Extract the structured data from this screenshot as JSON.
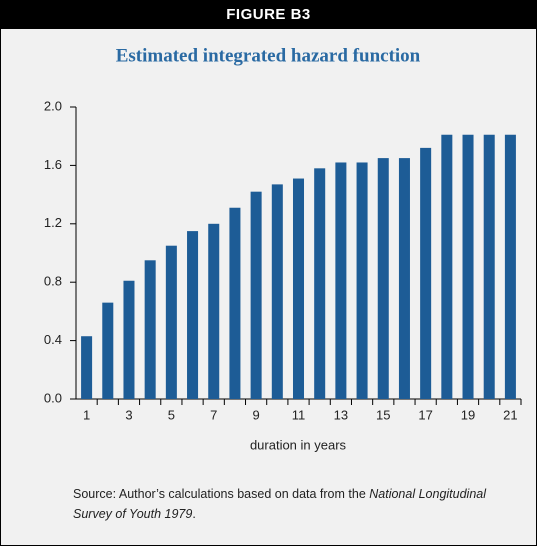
{
  "header": {
    "title": "FIGURE B3"
  },
  "chart_data": {
    "type": "bar",
    "title": "Estimated integrated hazard function",
    "categories": [
      "1",
      null,
      "3",
      null,
      "5",
      null,
      "7",
      null,
      "9",
      null,
      "11",
      null,
      "13",
      null,
      "15",
      null,
      "17",
      null,
      "19",
      null,
      "21"
    ],
    "values": [
      0.43,
      0.66,
      0.81,
      0.95,
      1.05,
      1.15,
      1.2,
      1.31,
      1.42,
      1.47,
      1.51,
      1.58,
      1.62,
      1.62,
      1.65,
      1.65,
      1.72,
      1.81,
      1.81,
      1.81,
      1.81
    ],
    "color": "#1d5c96",
    "ylim": [
      0,
      2
    ],
    "yticks": [
      {
        "value": 0,
        "label": "0.0"
      },
      0.4,
      0.8,
      1.2,
      1.6,
      {
        "value": 2,
        "label": "2.0"
      }
    ],
    "x_label": "duration in years",
    "grid": false
  },
  "source": {
    "prefix": "Source: Author’s calculations based on data from the ",
    "italic": "National Longitudinal Survey of Youth 1979",
    "suffix": "."
  }
}
